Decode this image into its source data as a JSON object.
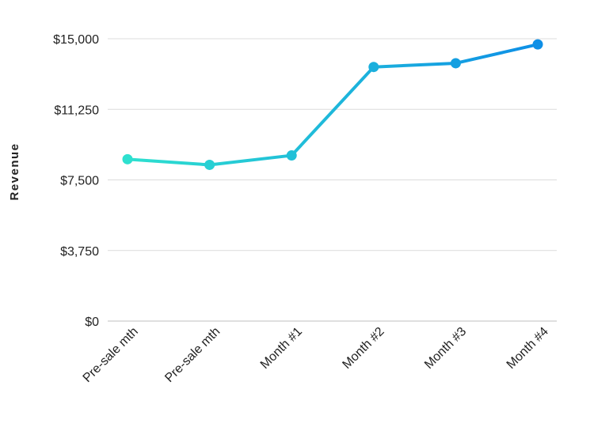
{
  "chart_data": {
    "type": "line",
    "title": "",
    "xlabel": "",
    "ylabel": "Revenue",
    "categories": [
      "Pre-sale mth",
      "Pre-sale mth",
      "Month #1",
      "Month #2",
      "Month #3",
      "Month #4"
    ],
    "series": [
      {
        "values": [
          8600,
          8300,
          8800,
          13500,
          13700,
          14700
        ]
      }
    ],
    "ylim": [
      0,
      15000
    ],
    "yticks": [
      0,
      3750,
      7500,
      11250,
      15000
    ],
    "ytick_labels": [
      "$0",
      "$3,750",
      "$7,500",
      "$11,250",
      "$15,000"
    ],
    "grid": true,
    "legend": "none",
    "colors": {
      "line_start": "#2ee0cf",
      "line_end": "#0e8fe6",
      "grid": "#dcdcdc",
      "baseline": "#bfbfbf"
    }
  }
}
